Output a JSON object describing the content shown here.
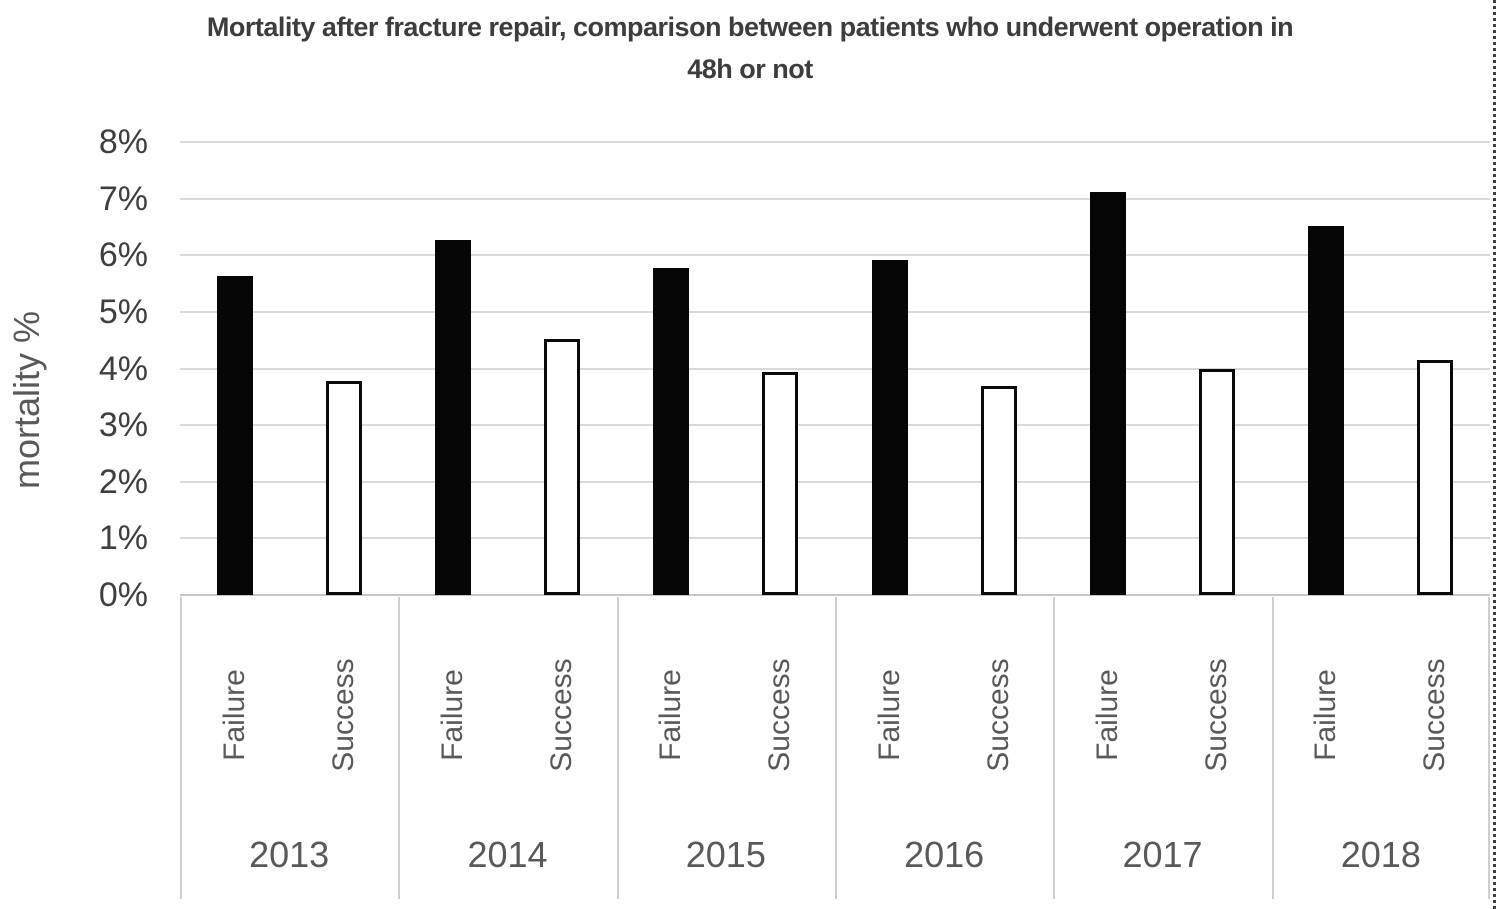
{
  "chart_data": {
    "type": "bar",
    "title": "Mortality after fracture repair, comparison between patients who underwent operation in 48h or not",
    "xlabel": "",
    "ylabel": "mortality %",
    "ylim": [
      0,
      8
    ],
    "y_tick_labels": [
      "0%",
      "1%",
      "2%",
      "3%",
      "4%",
      "5%",
      "6%",
      "7%",
      "8%"
    ],
    "grid": true,
    "legend": false,
    "categories": [
      "2013",
      "2014",
      "2015",
      "2016",
      "2017",
      "2018"
    ],
    "group_labels": [
      "Failure",
      "Success"
    ],
    "series": [
      {
        "name": "Failure",
        "style": "solid-black",
        "values": [
          5.63,
          6.27,
          5.78,
          5.92,
          7.12,
          6.52
        ]
      },
      {
        "name": "Success",
        "style": "white-outlined",
        "values": [
          3.78,
          4.53,
          3.93,
          3.7,
          4.0,
          4.15
        ]
      }
    ]
  },
  "colors": {
    "title_text": "#3d3d3d",
    "tick_text": "#3f3f3f",
    "axis_text": "#595959",
    "gridline": "#d9d9d9",
    "bar_solid": "#060606",
    "bar_outline": "#0a0a0a",
    "separator": "#cfcfcf",
    "page_edge_dots": "#3f3f3f"
  }
}
